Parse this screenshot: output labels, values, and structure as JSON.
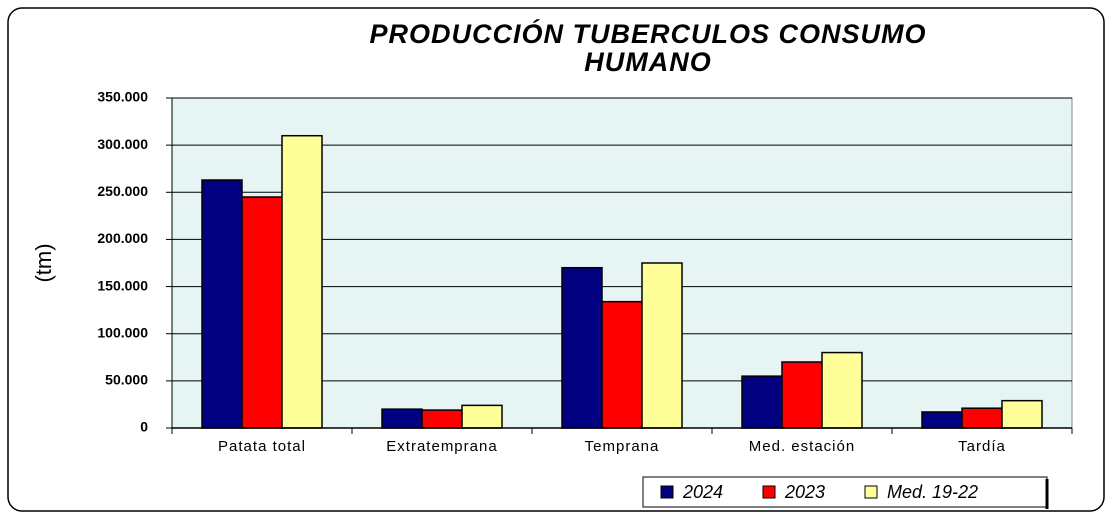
{
  "chart_data": {
    "type": "bar",
    "title": "PRODUCCIÓN TUBERCULOS CONSUMO HUMANO",
    "y_label": "(tm)",
    "categories": [
      "Patata total",
      "Extratemprana",
      "Temprana",
      "Med. estación",
      "Tardía"
    ],
    "series": [
      {
        "name": "2024",
        "color": "#000080",
        "values": [
          263000,
          20000,
          170000,
          55000,
          17000
        ]
      },
      {
        "name": "2023",
        "color": "#ff0000",
        "values": [
          245000,
          19000,
          134000,
          70000,
          21000
        ]
      },
      {
        "name": "Med. 19-22",
        "color": "#ffff99",
        "values": [
          310000,
          24000,
          175000,
          80000,
          29000
        ]
      }
    ],
    "ylim": [
      0,
      350000
    ],
    "yticks": [
      0,
      {
        "value": 50000,
        "label": "50.000"
      },
      {
        "value": 100000,
        "label": "100.000"
      },
      {
        "value": 150000,
        "label": "150.000"
      },
      {
        "value": 200000,
        "label": "200.000"
      },
      {
        "value": 250000,
        "label": "250.000"
      },
      {
        "value": 300000,
        "label": "300.000"
      },
      {
        "value": 350000,
        "label": "350.000"
      }
    ],
    "grid": true,
    "legend": "bottom-right",
    "background": "#e6f4f4"
  }
}
